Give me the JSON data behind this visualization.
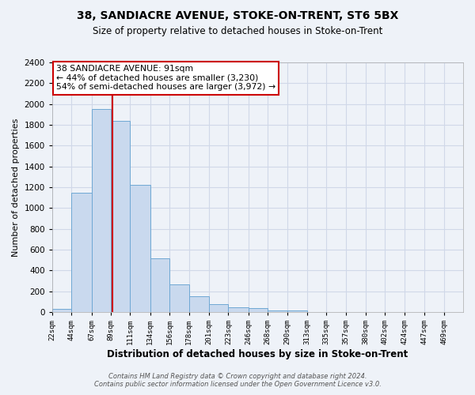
{
  "title": "38, SANDIACRE AVENUE, STOKE-ON-TRENT, ST6 5BX",
  "subtitle": "Size of property relative to detached houses in Stoke-on-Trent",
  "xlabel": "Distribution of detached houses by size in Stoke-on-Trent",
  "ylabel": "Number of detached properties",
  "bin_labels": [
    "22sqm",
    "44sqm",
    "67sqm",
    "89sqm",
    "111sqm",
    "134sqm",
    "156sqm",
    "178sqm",
    "201sqm",
    "223sqm",
    "246sqm",
    "268sqm",
    "290sqm",
    "313sqm",
    "335sqm",
    "357sqm",
    "380sqm",
    "402sqm",
    "424sqm",
    "447sqm",
    "469sqm"
  ],
  "bin_edges": [
    22,
    44,
    67,
    89,
    111,
    134,
    156,
    178,
    201,
    223,
    246,
    268,
    290,
    313,
    335,
    357,
    380,
    402,
    424,
    447,
    469
  ],
  "bar_heights": [
    30,
    1150,
    1950,
    1840,
    1220,
    520,
    265,
    150,
    80,
    50,
    38,
    18,
    15,
    5,
    3,
    2,
    1,
    1,
    0,
    0
  ],
  "bar_color": "#c9d9ee",
  "bar_edge_color": "#6fa8d4",
  "vline_x": 91,
  "vline_color": "#cc0000",
  "annotation_title": "38 SANDIACRE AVENUE: 91sqm",
  "annotation_line1": "← 44% of detached houses are smaller (3,230)",
  "annotation_line2": "54% of semi-detached houses are larger (3,972) →",
  "annotation_box_color": "#ffffff",
  "annotation_box_edge": "#cc0000",
  "ylim": [
    0,
    2400
  ],
  "yticks": [
    0,
    200,
    400,
    600,
    800,
    1000,
    1200,
    1400,
    1600,
    1800,
    2000,
    2200,
    2400
  ],
  "grid_color": "#d0d8e8",
  "bg_color": "#eef2f8",
  "footer1": "Contains HM Land Registry data © Crown copyright and database right 2024.",
  "footer2": "Contains public sector information licensed under the Open Government Licence v3.0."
}
